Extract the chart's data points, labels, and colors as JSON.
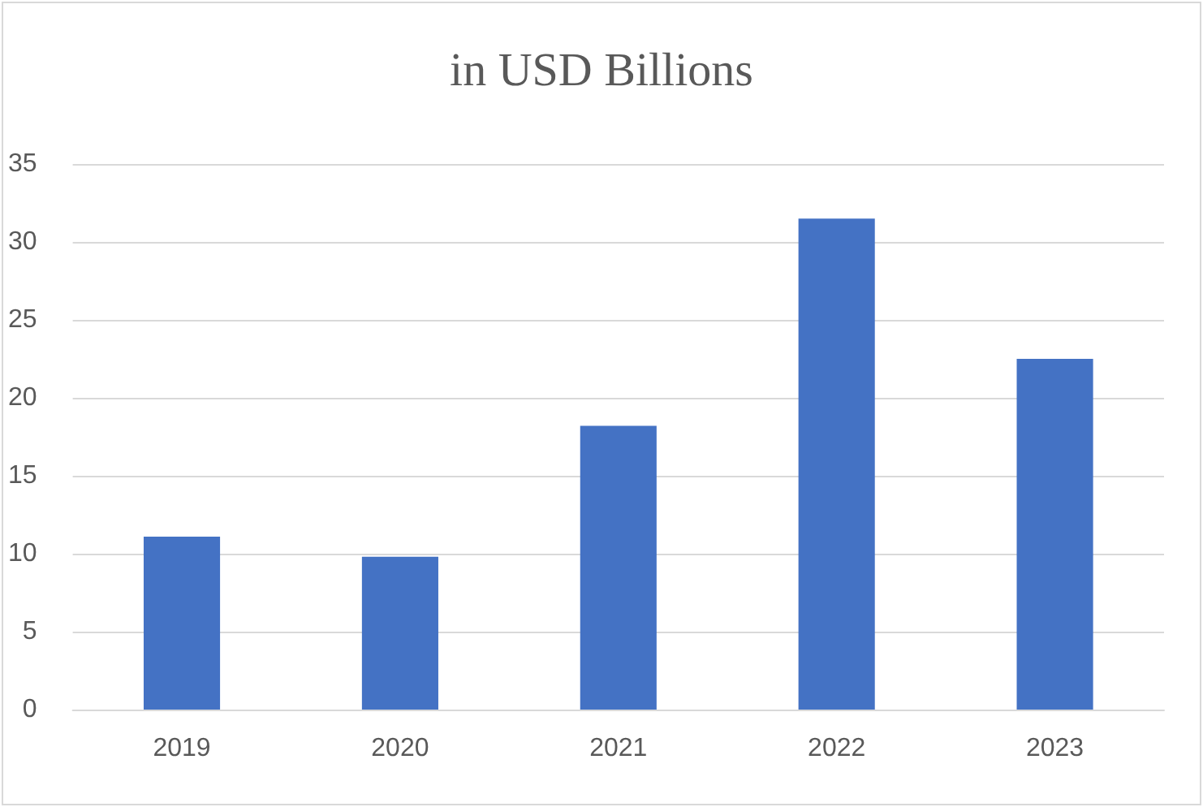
{
  "chart_data": {
    "type": "bar",
    "title": "in USD Billions",
    "categories": [
      "2019",
      "2020",
      "2021",
      "2022",
      "2023"
    ],
    "values": [
      11.1,
      9.8,
      18.2,
      31.5,
      22.5
    ],
    "color": "#4472c4",
    "ylim": [
      0,
      35
    ],
    "yticks": [
      0,
      5,
      10,
      15,
      20,
      25,
      30,
      35
    ],
    "grid": "y"
  }
}
